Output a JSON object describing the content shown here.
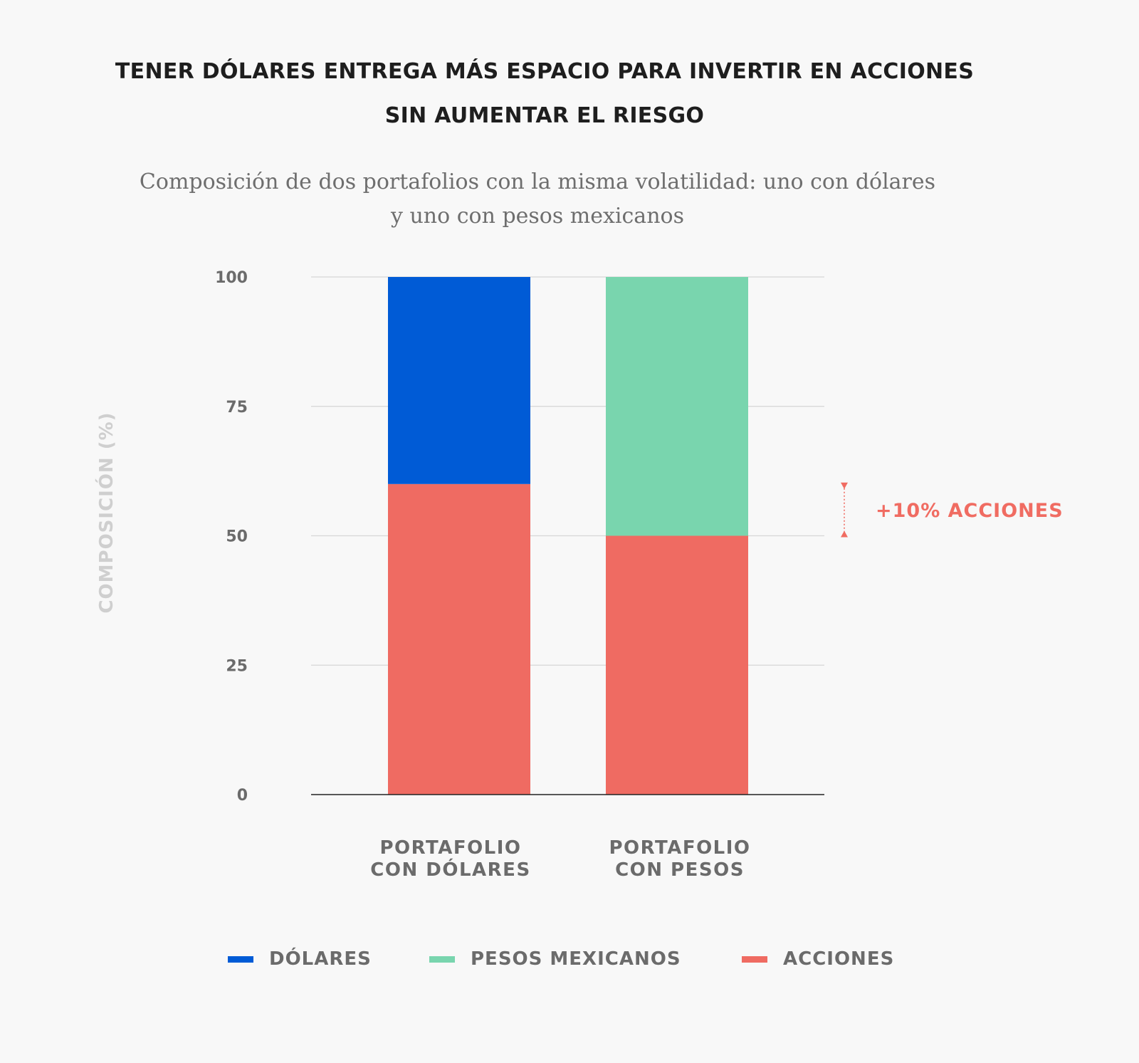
{
  "title_lines": [
    "TENER DÓLARES ENTREGA MÁS ESPACIO PARA INVERTIR EN ACCIONES",
    "SIN AUMENTAR EL RIESGO"
  ],
  "subtitle_lines": [
    "Composición de dos portafolios con la misma volatilidad: uno con dólares",
    "y uno con pesos mexicanos"
  ],
  "chart_data": {
    "type": "bar",
    "stacked": true,
    "categories": [
      [
        "PORTAFOLIO",
        "CON DÓLARES"
      ],
      [
        "PORTAFOLIO",
        "CON PESOS"
      ]
    ],
    "series": [
      {
        "name": "ACCIONES",
        "color": "#ef6b62",
        "values": [
          60,
          50
        ]
      },
      {
        "name": "DÓLARES",
        "color": "#005bd6",
        "values": [
          40,
          0
        ]
      },
      {
        "name": "PESOS MEXICANOS",
        "color": "#79d5ae",
        "values": [
          0,
          50
        ]
      }
    ],
    "ylabel": "COMPOSICIÓN (%)",
    "ylim": [
      0,
      100
    ],
    "yticks": [
      0,
      25,
      50,
      75,
      100
    ],
    "grid": true,
    "legend_position": "bottom",
    "legend": [
      {
        "label": "DÓLARES",
        "color": "#005bd6"
      },
      {
        "label": "PESOS MEXICANOS",
        "color": "#79d5ae"
      },
      {
        "label": "ACCIONES",
        "color": "#ef6b62"
      }
    ],
    "annotation": {
      "text": "+10% ACCIONES",
      "from": 50,
      "to": 60,
      "color": "#f06c62"
    }
  }
}
